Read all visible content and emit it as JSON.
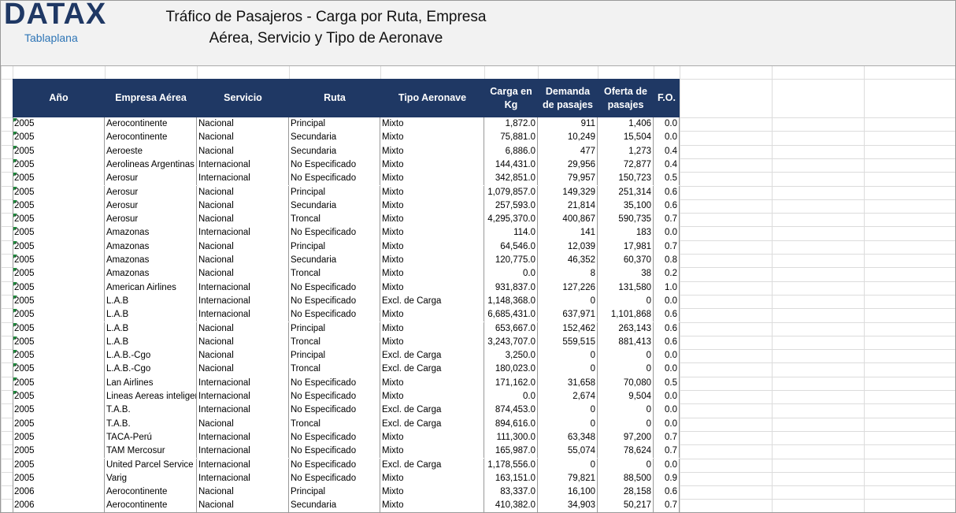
{
  "header": {
    "logo": "DATAX",
    "logo_subtitle": "Tablaplana",
    "title_lines": [
      "Tráfico de Pasajeros - Carga por Ruta, Empresa",
      "Aérea, Servicio y Tipo de Aeronave"
    ]
  },
  "table": {
    "columns": [
      "Año",
      "Empresa Aérea",
      "Servicio",
      "Ruta",
      "Tipo Aeronave",
      "Carga en Kg",
      "Demanda de pasajes",
      "Oferta de pasajes",
      "F.O."
    ],
    "rows": [
      [
        "2005",
        "Aerocontinente",
        "Nacional",
        "Principal",
        "Mixto",
        "1,872.0",
        "911",
        "1,406",
        "0.0"
      ],
      [
        "2005",
        "Aerocontinente",
        "Nacional",
        "Secundaria",
        "Mixto",
        "75,881.0",
        "10,249",
        "15,504",
        "0.0"
      ],
      [
        "2005",
        "Aeroeste",
        "Nacional",
        "Secundaria",
        "Mixto",
        "6,886.0",
        "477",
        "1,273",
        "0.4"
      ],
      [
        "2005",
        "Aerolineas Argentinas",
        "Internacional",
        "No Especificado",
        "Mixto",
        "144,431.0",
        "29,956",
        "72,877",
        "0.4"
      ],
      [
        "2005",
        "Aerosur",
        "Internacional",
        "No Especificado",
        "Mixto",
        "342,851.0",
        "79,957",
        "150,723",
        "0.5"
      ],
      [
        "2005",
        "Aerosur",
        "Nacional",
        "Principal",
        "Mixto",
        "1,079,857.0",
        "149,329",
        "251,314",
        "0.6"
      ],
      [
        "2005",
        "Aerosur",
        "Nacional",
        "Secundaria",
        "Mixto",
        "257,593.0",
        "21,814",
        "35,100",
        "0.6"
      ],
      [
        "2005",
        "Aerosur",
        "Nacional",
        "Troncal",
        "Mixto",
        "4,295,370.0",
        "400,867",
        "590,735",
        "0.7"
      ],
      [
        "2005",
        "Amazonas",
        "Internacional",
        "No Especificado",
        "Mixto",
        "114.0",
        "141",
        "183",
        "0.0"
      ],
      [
        "2005",
        "Amazonas",
        "Nacional",
        "Principal",
        "Mixto",
        "64,546.0",
        "12,039",
        "17,981",
        "0.7"
      ],
      [
        "2005",
        "Amazonas",
        "Nacional",
        "Secundaria",
        "Mixto",
        "120,775.0",
        "46,352",
        "60,370",
        "0.8"
      ],
      [
        "2005",
        "Amazonas",
        "Nacional",
        "Troncal",
        "Mixto",
        "0.0",
        "8",
        "38",
        "0.2"
      ],
      [
        "2005",
        "American Airlines",
        "Internacional",
        "No Especificado",
        "Mixto",
        "931,837.0",
        "127,226",
        "131,580",
        "1.0"
      ],
      [
        "2005",
        "L.A.B",
        "Internacional",
        "No Especificado",
        "Excl. de Carga",
        "1,148,368.0",
        "0",
        "0",
        "0.0"
      ],
      [
        "2005",
        "L.A.B",
        "Internacional",
        "No Especificado",
        "Mixto",
        "6,685,431.0",
        "637,971",
        "1,101,868",
        "0.6"
      ],
      [
        "2005",
        "L.A.B",
        "Nacional",
        "Principal",
        "Mixto",
        "653,667.0",
        "152,462",
        "263,143",
        "0.6"
      ],
      [
        "2005",
        "L.A.B",
        "Nacional",
        "Troncal",
        "Mixto",
        "3,243,707.0",
        "559,515",
        "881,413",
        "0.6"
      ],
      [
        "2005",
        "L.A.B.-Cgo",
        "Nacional",
        "Principal",
        "Excl. de Carga",
        "3,250.0",
        "0",
        "0",
        "0.0"
      ],
      [
        "2005",
        "L.A.B.-Cgo",
        "Nacional",
        "Troncal",
        "Excl. de Carga",
        "180,023.0",
        "0",
        "0",
        "0.0"
      ],
      [
        "2005",
        "Lan Airlines",
        "Internacional",
        "No Especificado",
        "Mixto",
        "171,162.0",
        "31,658",
        "70,080",
        "0.5"
      ],
      [
        "2005",
        "Lineas Aereas inteligentes",
        "Internacional",
        "No Especificado",
        "Mixto",
        "0.0",
        "2,674",
        "9,504",
        "0.0"
      ],
      [
        "2005",
        "T.A.B.",
        "Internacional",
        "No Especificado",
        "Excl. de Carga",
        "874,453.0",
        "0",
        "0",
        "0.0"
      ],
      [
        "2005",
        "T.A.B.",
        "Nacional",
        "Troncal",
        "Excl. de Carga",
        "894,616.0",
        "0",
        "0",
        "0.0"
      ],
      [
        "2005",
        "TACA-Perú",
        "Internacional",
        "No Especificado",
        "Mixto",
        "111,300.0",
        "63,348",
        "97,200",
        "0.7"
      ],
      [
        "2005",
        "TAM Mercosur",
        "Internacional",
        "No Especificado",
        "Mixto",
        "165,987.0",
        "55,074",
        "78,624",
        "0.7"
      ],
      [
        "2005",
        "United Parcel Service",
        "Internacional",
        "No Especificado",
        "Excl. de Carga",
        "1,178,556.0",
        "0",
        "0",
        "0.0"
      ],
      [
        "2005",
        "Varig",
        "Internacional",
        "No Especificado",
        "Mixto",
        "163,151.0",
        "79,821",
        "88,500",
        "0.9"
      ],
      [
        "2006",
        "Aerocontinente",
        "Nacional",
        "Principal",
        "Mixto",
        "83,337.0",
        "16,100",
        "28,158",
        "0.6"
      ],
      [
        "2006",
        "Aerocontinente",
        "Nacional",
        "Secundaria",
        "Mixto",
        "410,382.0",
        "34,903",
        "50,217",
        "0.7"
      ]
    ]
  }
}
